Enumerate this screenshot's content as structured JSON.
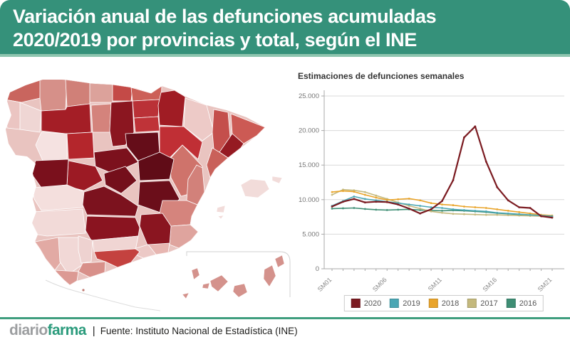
{
  "header": {
    "title_line1": "Variación anual de las defunciones acumuladas",
    "title_line2": "2020/2019 por provincias y total, según el INE",
    "bg_color": "#35917a"
  },
  "map": {
    "description": "Choropleth of Spain: annual variation of accumulated deaths 2020/2019 by province (darker red = larger increase)",
    "provinces": [
      {
        "id": "a-coruna",
        "name": "A Coruña",
        "color": "#c9655e"
      },
      {
        "id": "lugo",
        "name": "Lugo",
        "color": "#d69089"
      },
      {
        "id": "pontevedra",
        "name": "Pontevedra",
        "color": "#ebc5c2"
      },
      {
        "id": "ourense",
        "name": "Ourense",
        "color": "#efd6d4"
      },
      {
        "id": "asturias",
        "name": "Asturias",
        "color": "#d08078"
      },
      {
        "id": "cantabria",
        "name": "Cantabria",
        "color": "#dca29b"
      },
      {
        "id": "bizkaia",
        "name": "Bizkaia",
        "color": "#c44a47"
      },
      {
        "id": "gipuzkoa",
        "name": "Gipuzkoa",
        "color": "#cc6058"
      },
      {
        "id": "alava",
        "name": "Álava",
        "color": "#ba3137"
      },
      {
        "id": "navarra",
        "name": "Navarra",
        "color": "#a01c24"
      },
      {
        "id": "la-rioja",
        "name": "La Rioja",
        "color": "#bf3338"
      },
      {
        "id": "leon",
        "name": "León",
        "color": "#a41e26"
      },
      {
        "id": "palencia",
        "name": "Palencia",
        "color": "#d4837c"
      },
      {
        "id": "burgos",
        "name": "Burgos",
        "color": "#8b1620"
      },
      {
        "id": "zamora",
        "name": "Zamora",
        "color": "#f5e2e1"
      },
      {
        "id": "valladolid",
        "name": "Valladolid",
        "color": "#b4262c"
      },
      {
        "id": "soria",
        "name": "Soria",
        "color": "#650d19"
      },
      {
        "id": "segovia",
        "name": "Segovia",
        "color": "#7c111d"
      },
      {
        "id": "avila",
        "name": "Ávila",
        "color": "#9c1a24"
      },
      {
        "id": "salamanca",
        "name": "Salamanca",
        "color": "#7a101c"
      },
      {
        "id": "madrid",
        "name": "Madrid",
        "color": "#740f1b"
      },
      {
        "id": "guadalajara",
        "name": "Guadalajara",
        "color": "#600c17"
      },
      {
        "id": "cuenca",
        "name": "Cuenca",
        "color": "#6b0e1a"
      },
      {
        "id": "teruel",
        "name": "Teruel",
        "color": "#cf736b"
      },
      {
        "id": "huesca",
        "name": "Huesca",
        "color": "#edcac7"
      },
      {
        "id": "zaragoza",
        "name": "Zaragoza",
        "color": "#c02f35"
      },
      {
        "id": "lleida",
        "name": "Lleida",
        "color": "#c44f4c"
      },
      {
        "id": "girona",
        "name": "Girona",
        "color": "#cc5a54"
      },
      {
        "id": "barcelona",
        "name": "Barcelona",
        "color": "#951a22"
      },
      {
        "id": "tarragona",
        "name": "Tarragona",
        "color": "#c9615a"
      },
      {
        "id": "castellon",
        "name": "Castellón",
        "color": "#d2817a"
      },
      {
        "id": "valencia",
        "name": "Valencia",
        "color": "#d5847d"
      },
      {
        "id": "alicante",
        "name": "Alicante",
        "color": "#dfa49e"
      },
      {
        "id": "albacete",
        "name": "Albacete",
        "color": "#8a1520"
      },
      {
        "id": "murcia",
        "name": "Murcia",
        "color": "#e7b6b1"
      },
      {
        "id": "caceres",
        "name": "Cáceres",
        "color": "#f4dfdd"
      },
      {
        "id": "badajoz",
        "name": "Badajoz",
        "color": "#f2dad8"
      },
      {
        "id": "toledo",
        "name": "Toledo",
        "color": "#7c121e"
      },
      {
        "id": "ciudad-real",
        "name": "Ciudad Real",
        "color": "#8a1420"
      },
      {
        "id": "huelva",
        "name": "Huelva",
        "color": "#e2aaa4"
      },
      {
        "id": "sevilla",
        "name": "Sevilla",
        "color": "#f1d8d6"
      },
      {
        "id": "cordoba",
        "name": "Córdoba",
        "color": "#eed2d0"
      },
      {
        "id": "jaen",
        "name": "Jaén",
        "color": "#f0d5d3"
      },
      {
        "id": "granada",
        "name": "Granada",
        "color": "#c4423f"
      },
      {
        "id": "almeria",
        "name": "Almería",
        "color": "#ecc9c6"
      },
      {
        "id": "malaga",
        "name": "Málaga",
        "color": "#d8908a"
      },
      {
        "id": "cadiz",
        "name": "Cádiz",
        "color": "#dc9a94"
      },
      {
        "id": "illes-balears",
        "name": "Illes Balears",
        "color": "#f2dcda"
      },
      {
        "id": "canarias",
        "name": "Canarias",
        "color": "#d4928c"
      }
    ],
    "base_color": "#e9c4c0",
    "border_color": "#ffffff",
    "inset_border_color": "#d0d0d0"
  },
  "chart_data": {
    "type": "line",
    "title": "Estimaciones de defunciones semanales",
    "weeks": 21,
    "x_ticks": [
      [
        1,
        "SM01"
      ],
      [
        6,
        "SM06"
      ],
      [
        11,
        "SM11"
      ],
      [
        16,
        "SM16"
      ],
      [
        21,
        "SM21"
      ]
    ],
    "y_ticks": [
      [
        25000,
        "25.000"
      ],
      [
        20000,
        "20.000"
      ],
      [
        15000,
        "15.000"
      ],
      [
        10000,
        "10.000"
      ],
      [
        5000,
        "5.000"
      ],
      [
        0,
        "0"
      ]
    ],
    "ylim": [
      0,
      25000
    ],
    "grid": true,
    "legend_position": "bottom",
    "series": [
      {
        "name": "2020",
        "color": "#7b1b21",
        "values": [
          9000,
          9700,
          10100,
          9600,
          9700,
          9650,
          9300,
          8700,
          8000,
          8600,
          9800,
          12800,
          19000,
          20600,
          15500,
          11800,
          9900,
          8900,
          8800,
          7600,
          7400
        ]
      },
      {
        "name": "2019",
        "color": "#4ba7b4",
        "values": [
          9100,
          9800,
          10450,
          10100,
          9900,
          9700,
          9500,
          9300,
          9100,
          8900,
          8800,
          8600,
          8500,
          8400,
          8300,
          8100,
          8000,
          7900,
          7800,
          7700,
          7600
        ]
      },
      {
        "name": "2018",
        "color": "#e9a42a",
        "values": [
          11100,
          11250,
          11150,
          10700,
          10300,
          9950,
          10050,
          10150,
          9900,
          9500,
          9300,
          9200,
          9000,
          8900,
          8800,
          8600,
          8400,
          8200,
          8000,
          7800,
          7700
        ]
      },
      {
        "name": "2017",
        "color": "#c4b97d",
        "values": [
          10700,
          11450,
          11350,
          11100,
          10600,
          10100,
          9600,
          9100,
          8700,
          8300,
          8100,
          7950,
          7900,
          7850,
          7800,
          7800,
          7750,
          7700,
          7650,
          7600,
          7500
        ]
      },
      {
        "name": "2016",
        "color": "#3e8e74",
        "values": [
          8700,
          8750,
          8800,
          8650,
          8550,
          8500,
          8550,
          8600,
          8500,
          8450,
          8400,
          8450,
          8400,
          8300,
          8200,
          8050,
          7950,
          7850,
          7750,
          7650,
          7500
        ]
      }
    ]
  },
  "footer": {
    "logo_part1": "diario",
    "logo_part2": "farma",
    "separator": "|",
    "source": "Fuente: Instituto Nacional de Estadística (INE)"
  }
}
